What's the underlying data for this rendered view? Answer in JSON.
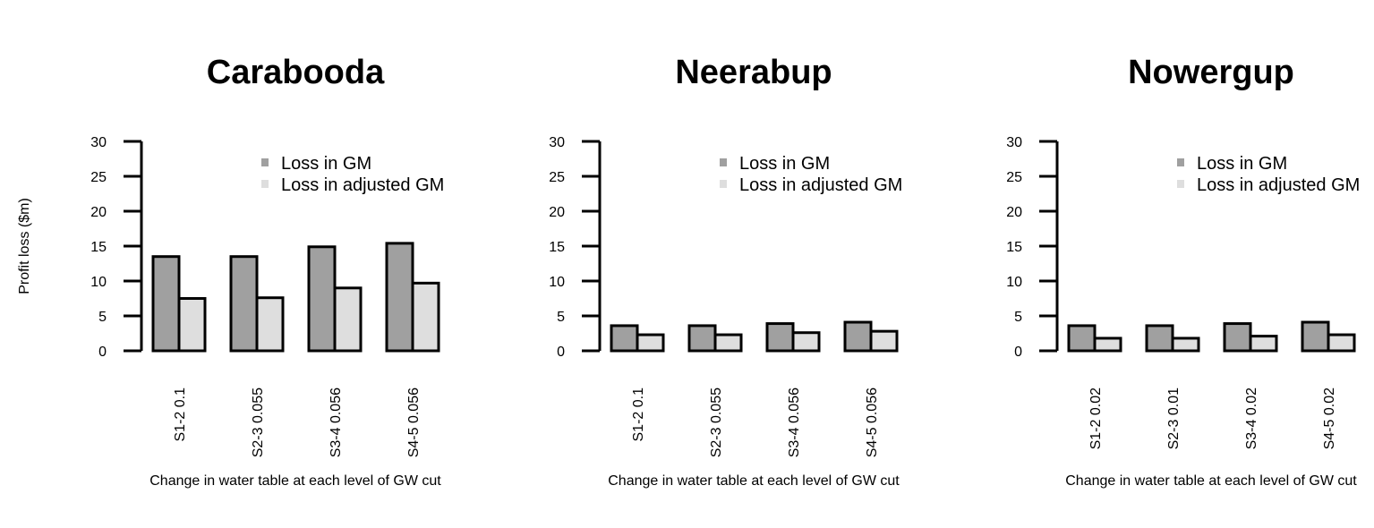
{
  "chart_data": [
    {
      "type": "bar",
      "title": "Carabooda",
      "categories": [
        "S1-2 0.1",
        "S2-3 0.055",
        "S3-4 0.056",
        "S4-5 0.056"
      ],
      "series": [
        {
          "name": "Loss in GM",
          "values": [
            13.5,
            13.5,
            14.9,
            15.4
          ],
          "color": "#a0a0a0"
        },
        {
          "name": "Loss in adjusted GM",
          "values": [
            7.5,
            7.6,
            9.0,
            9.7
          ],
          "color": "#dedede"
        }
      ],
      "ylim": [
        0,
        30
      ],
      "yticks": [
        0,
        5,
        10,
        15,
        20,
        25,
        30
      ],
      "xlabel": "Change in water table at each level of GW cut",
      "ylabel": "Profit loss ($m)",
      "legend_position": "top-right"
    },
    {
      "type": "bar",
      "title": "Neerabup",
      "categories": [
        "S1-2 0.1",
        "S2-3 0.055",
        "S3-4 0.056",
        "S4-5 0.056"
      ],
      "series": [
        {
          "name": "Loss in GM",
          "values": [
            3.6,
            3.6,
            3.9,
            4.1
          ],
          "color": "#a0a0a0"
        },
        {
          "name": "Loss in adjusted GM",
          "values": [
            2.3,
            2.3,
            2.6,
            2.8
          ],
          "color": "#dedede"
        }
      ],
      "ylim": [
        0,
        30
      ],
      "yticks": [
        0,
        5,
        10,
        15,
        20,
        25,
        30
      ],
      "xlabel": "Change in water table at each level of GW cut",
      "ylabel": "",
      "legend_position": "top-right"
    },
    {
      "type": "bar",
      "title": "Nowergup",
      "categories": [
        "S1-2 0.02",
        "S2-3 0.01",
        "S3-4 0.02",
        "S4-5 0.02"
      ],
      "series": [
        {
          "name": "Loss in GM",
          "values": [
            3.6,
            3.6,
            3.9,
            4.1
          ],
          "color": "#a0a0a0"
        },
        {
          "name": "Loss in adjusted GM",
          "values": [
            1.8,
            1.8,
            2.1,
            2.3
          ],
          "color": "#dedede"
        }
      ],
      "ylim": [
        0,
        30
      ],
      "yticks": [
        0,
        5,
        10,
        15,
        20,
        25,
        30
      ],
      "xlabel": "Change in water table at each level of GW cut",
      "ylabel": "",
      "legend_position": "top-right"
    }
  ]
}
